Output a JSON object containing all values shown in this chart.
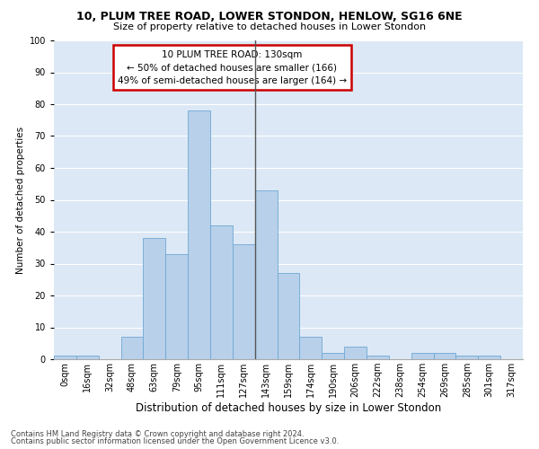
{
  "title1": "10, PLUM TREE ROAD, LOWER STONDON, HENLOW, SG16 6NE",
  "title2": "Size of property relative to detached houses in Lower Stondon",
  "xlabel": "Distribution of detached houses by size in Lower Stondon",
  "ylabel": "Number of detached properties",
  "bar_labels": [
    "0sqm",
    "16sqm",
    "32sqm",
    "48sqm",
    "63sqm",
    "79sqm",
    "95sqm",
    "111sqm",
    "127sqm",
    "143sqm",
    "159sqm",
    "174sqm",
    "190sqm",
    "206sqm",
    "222sqm",
    "238sqm",
    "254sqm",
    "269sqm",
    "285sqm",
    "301sqm",
    "317sqm"
  ],
  "bar_values": [
    1,
    1,
    0,
    7,
    38,
    33,
    78,
    42,
    36,
    53,
    27,
    7,
    2,
    4,
    1,
    0,
    2,
    2,
    1,
    1,
    0
  ],
  "bar_color": "#b8d0ea",
  "bar_edge_color": "#6fa8d4",
  "fig_background_color": "#ffffff",
  "ax_background_color": "#dce8f5",
  "grid_color": "#ffffff",
  "annotation_text": "10 PLUM TREE ROAD: 130sqm\n← 50% of detached houses are smaller (166)\n49% of semi-detached houses are larger (164) →",
  "annotation_box_facecolor": "#ffffff",
  "annotation_box_edgecolor": "#cc0000",
  "vline_x": 8.5,
  "vline_color": "#555555",
  "ylim": [
    0,
    100
  ],
  "yticks": [
    0,
    10,
    20,
    30,
    40,
    50,
    60,
    70,
    80,
    90,
    100
  ],
  "footer1": "Contains HM Land Registry data © Crown copyright and database right 2024.",
  "footer2": "Contains public sector information licensed under the Open Government Licence v3.0.",
  "title1_fontsize": 9,
  "title2_fontsize": 8,
  "xlabel_fontsize": 8.5,
  "ylabel_fontsize": 7.5,
  "tick_fontsize": 7,
  "annotation_fontsize": 7.5,
  "footer_fontsize": 6
}
